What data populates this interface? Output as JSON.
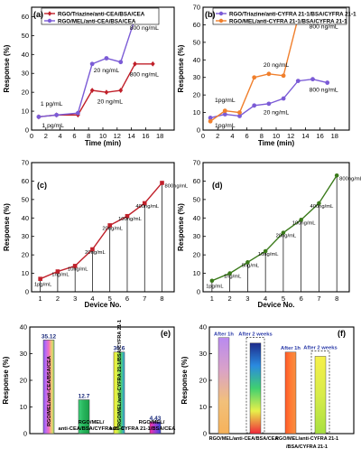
{
  "chart_data": [
    {
      "panel": "(a)",
      "type": "line",
      "xlabel": "Time (min)",
      "ylabel": "Response (%)",
      "xlim": [
        0,
        20
      ],
      "ylim": [
        0,
        65
      ],
      "xticks": [
        0,
        2,
        4,
        6,
        8,
        10,
        12,
        14,
        16,
        18
      ],
      "yticks": [
        0,
        10,
        20,
        30,
        40,
        50,
        60
      ],
      "series": [
        {
          "name": "RGO/Triazine/anti-CEA/BSA/CEA",
          "color": "#c0202a",
          "marker": "diamond",
          "x": [
            1,
            3.5,
            6.5,
            8.5,
            10.5,
            12.5,
            14.5,
            17
          ],
          "y": [
            7,
            8,
            8,
            21,
            20,
            21,
            35,
            35
          ]
        },
        {
          "name": "RGO/MEL/anti-CEA/BSA/CEA",
          "color": "#7b5bd6",
          "marker": "circle",
          "x": [
            1,
            3.5,
            6.5,
            8.5,
            10.5,
            12.5,
            14.5,
            17
          ],
          "y": [
            7,
            8,
            9,
            35,
            38,
            36,
            59,
            59
          ]
        }
      ],
      "annotations": [
        "1 pg/mL",
        "1 pg/mL",
        "20 ng/mL",
        "20 ng/mL",
        "800 ng/mL",
        "800 ng/mL"
      ]
    },
    {
      "panel": "(b)",
      "type": "line",
      "xlabel": "Time (min)",
      "ylabel": "Response (%)",
      "xlim": [
        0,
        20
      ],
      "ylim": [
        0,
        70
      ],
      "xticks": [
        0,
        2,
        4,
        6,
        8,
        10,
        12,
        14,
        16,
        18
      ],
      "yticks": [
        0,
        10,
        20,
        30,
        40,
        50,
        60,
        70
      ],
      "series": [
        {
          "name": "RGO/Triazine/anti-CYFRA 21-1/BSA/CYFRA 21-1",
          "color": "#7b5bd6",
          "marker": "circle",
          "x": [
            1,
            3,
            5,
            7,
            9,
            11,
            13,
            15,
            17
          ],
          "y": [
            7,
            9,
            8,
            14,
            15,
            18,
            28,
            29,
            27
          ]
        },
        {
          "name": "RGO/MEL/anti-CYFRA 21-1/BSA/CYFRA 21-1",
          "color": "#f07f2c",
          "marker": "circle",
          "x": [
            1,
            3,
            5,
            7,
            9,
            11,
            13,
            15,
            17
          ],
          "y": [
            5,
            11,
            10,
            30,
            32,
            31,
            64,
            65,
            65
          ]
        }
      ],
      "annotations": [
        "1pg/mL",
        "1pg/mL",
        "20 ng/mL",
        "20 ng/mL",
        "800 ng/mL",
        "800 ng/mL"
      ]
    },
    {
      "panel": "(c)",
      "type": "line",
      "xlabel": "Device No.",
      "ylabel": "Response (%)",
      "xlim": [
        0.5,
        8.7
      ],
      "ylim": [
        0,
        70
      ],
      "yticks": [
        0,
        10,
        20,
        30,
        40,
        50,
        60,
        70
      ],
      "series": [
        {
          "name": "",
          "color": "#c0202a",
          "marker": "square",
          "x": [
            1,
            2,
            3,
            4,
            5,
            6,
            7,
            8
          ],
          "y": [
            7,
            11,
            14,
            23,
            36,
            41,
            48,
            59
          ]
        }
      ],
      "data_labels": [
        "1pg/mL",
        "1ng/mL",
        "10ng/mL",
        "20ng/mL",
        "20ng/mL",
        "100ng/mL",
        "400ng/mL",
        "800ng/mL"
      ]
    },
    {
      "panel": "(d)",
      "type": "line",
      "xlabel": "Device No.",
      "ylabel": "Response (%)",
      "xlim": [
        0.5,
        8.7
      ],
      "ylim": [
        0,
        70
      ],
      "yticks": [
        0,
        10,
        20,
        30,
        40,
        50,
        60,
        70
      ],
      "series": [
        {
          "name": "",
          "color": "#3a7a1a",
          "marker": "circle",
          "x": [
            1,
            2,
            3,
            4,
            5,
            6,
            7,
            8
          ],
          "y": [
            6,
            10,
            16,
            22,
            32,
            39,
            48,
            63
          ]
        }
      ],
      "data_labels": [
        "1pg/mL",
        "1ng/mL",
        "5ng/mL",
        "10ng/mL",
        "20ng/mL",
        "100ng/mL",
        "400ng/mL",
        "800ng/mL"
      ]
    },
    {
      "panel": "(e)",
      "type": "bar",
      "ylabel": "Response (%)",
      "ylim": [
        0,
        40
      ],
      "yticks": [
        0,
        10,
        20,
        30,
        40
      ],
      "categories": [
        "RGO/MEL/anti-CEA/BSA/CEA",
        "RGO/MEL/ anti-CEA/BSA/CYFRA 21-1",
        "RGO/MEL/anti-CYFRA 21-1/BSA/CYFRA 21-1",
        "RGO/MEL/ anti-CYFRA 21-1/BSA/CEA"
      ],
      "values": [
        35.12,
        12.7,
        30.6,
        4.43
      ],
      "value_labels": [
        "35.12",
        "12.7",
        "30.6",
        "4.43"
      ]
    },
    {
      "panel": "(f)",
      "type": "bar",
      "ylabel": "Response (%)",
      "ylim": [
        0,
        40
      ],
      "yticks": [
        0,
        10,
        20,
        30,
        40
      ],
      "categories": [
        "RGO/MEL/anti-CEA/BSA/CEA",
        "RGO/MEL/anti-CYFRA 21-1 /BSA/CYFRA 21-1"
      ],
      "series": [
        {
          "name": "After 1h",
          "values": [
            36,
            30.6
          ]
        },
        {
          "name": "After 2 weeks",
          "values": [
            34,
            29
          ]
        }
      ]
    }
  ]
}
